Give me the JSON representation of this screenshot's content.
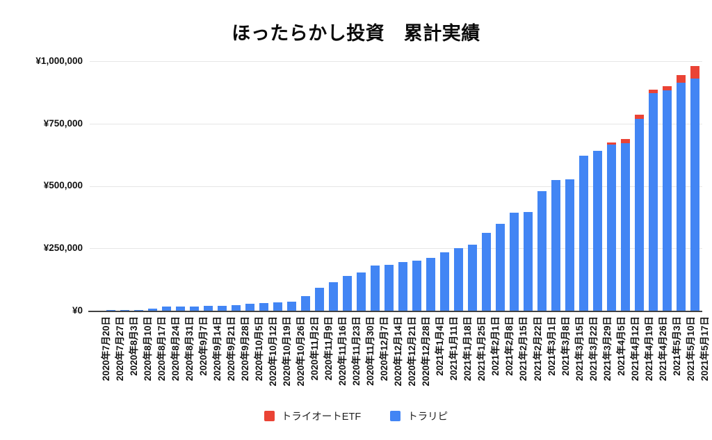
{
  "chart_data": {
    "type": "bar",
    "stacked": true,
    "title": "ほったらかし投資　累計実績",
    "xlabel": "",
    "ylabel": "",
    "ylim": [
      0,
      1000000
    ],
    "y_ticks": [
      "¥0",
      "¥250,000",
      "¥500,000",
      "¥750,000",
      "¥1,000,000"
    ],
    "grid": "horizontal",
    "legend_position": "bottom",
    "categories": [
      "2020年7月20日",
      "2020年7月27日",
      "2020年8月3日",
      "2020年8月10日",
      "2020年8月17日",
      "2020年8月24日",
      "2020年8月31日",
      "2020年9月7日",
      "2020年9月14日",
      "2020年9月21日",
      "2020年9月28日",
      "2020年10月5日",
      "2020年10月12日",
      "2020年10月19日",
      "2020年10月26日",
      "2020年11月2日",
      "2020年11月9日",
      "2020年11月16日",
      "2020年11月23日",
      "2020年11月30日",
      "2020年12月7日",
      "2020年12月14日",
      "2020年12月21日",
      "2020年12月28日",
      "2021年1月4日",
      "2021年1月11日",
      "2021年1月18日",
      "2021年1月25日",
      "2021年2月1日",
      "2021年2月8日",
      "2021年2月15日",
      "2021年2月22日",
      "2021年3月1日",
      "2021年3月8日",
      "2021年3月15日",
      "2021年3月22日",
      "2021年3月29日",
      "2021年4月5日",
      "2021年4月12日",
      "2021年4月19日",
      "2021年4月26日",
      "2021年5月3日",
      "2021年5月10日",
      "2021年5月17日"
    ],
    "series": [
      {
        "name": "トライオートETF",
        "color": "#EA4335",
        "values": [
          0,
          0,
          0,
          0,
          0,
          0,
          0,
          0,
          0,
          0,
          0,
          0,
          0,
          0,
          0,
          0,
          0,
          0,
          0,
          0,
          0,
          0,
          0,
          0,
          0,
          0,
          0,
          0,
          0,
          0,
          0,
          0,
          0,
          0,
          0,
          0,
          0,
          9000,
          16000,
          17000,
          15000,
          16000,
          28000,
          50000
        ]
      },
      {
        "name": "トラリピ",
        "color": "#4285F4",
        "values": [
          1000,
          2000,
          3000,
          4000,
          8000,
          17000,
          17500,
          18000,
          19500,
          20000,
          21000,
          28000,
          30000,
          33000,
          37000,
          58000,
          93000,
          113000,
          140000,
          154000,
          181000,
          185000,
          194000,
          200000,
          213000,
          233000,
          250000,
          266000,
          313000,
          348000,
          394000,
          395000,
          479000,
          525000,
          527000,
          620000,
          642000,
          665000,
          672000,
          769000,
          871000,
          883000,
          915000,
          930000
        ]
      }
    ]
  }
}
